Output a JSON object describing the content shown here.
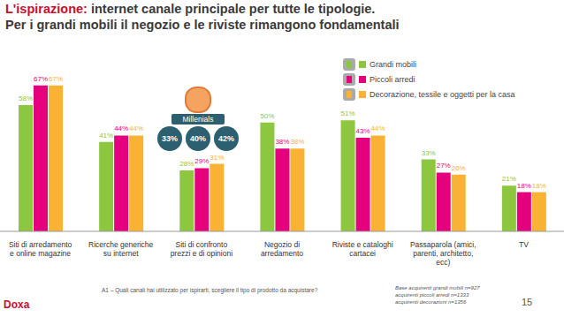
{
  "chart_data": {
    "type": "bar",
    "title": "L'ispirazione: internet canale principale per tutte le tipologie.",
    "subtitle": "Per i grandi mobili il negozio e le riviste rimangono fondamentali",
    "categories": [
      "Siti di arredamento e online magazine",
      "Ricerche generiche su internet",
      "Siti di confronto prezzi e di opinioni",
      "Negozio di arredamento",
      "Riviste e cataloghi cartacei",
      "Passaparola (amici, parenti, architetto, ecc)",
      "TV"
    ],
    "series": [
      {
        "name": "Grandi mobili",
        "color": "#8dc63f",
        "values": [
          58,
          41,
          28,
          50,
          51,
          33,
          21
        ],
        "value_labels": [
          "58%",
          "41%",
          "28%",
          "50%",
          "51%",
          "33%",
          "21%"
        ]
      },
      {
        "name": "Piccoli arredi",
        "color": "#e5007e",
        "values": [
          67,
          44,
          29,
          38,
          43,
          27,
          18
        ],
        "value_labels": [
          "67%",
          "44%",
          "29%",
          "38%",
          "43%",
          "27%",
          "18%"
        ]
      },
      {
        "name": "Decorazione, tessile e oggetti per la casa",
        "color": "#f9b233",
        "values": [
          67,
          44,
          31,
          38,
          44,
          26,
          18
        ],
        "value_labels": [
          "67%",
          "44%",
          "31%",
          "38%",
          "44%",
          "26%",
          "18%"
        ]
      }
    ],
    "ylim": [
      0,
      75
    ],
    "tick_labels": "x",
    "data_labels": true,
    "legend": "top-right",
    "annotations": [
      {
        "label": "Millenials",
        "values": [
          33,
          40,
          42
        ],
        "value_labels": [
          "33%",
          "40%",
          "42%"
        ]
      }
    ],
    "notes": [
      "A1 – Quali canali hai utilizzato per ispirarti, scegliere il tipo di prodotto da acquistare?"
    ],
    "source": [
      "Base acquirenti grandi mobili n=927",
      "acquirenti piccoli arredi n=1333",
      "acquirenti decorazioni n=1356"
    ],
    "page": 15,
    "logo": "Doxa"
  }
}
